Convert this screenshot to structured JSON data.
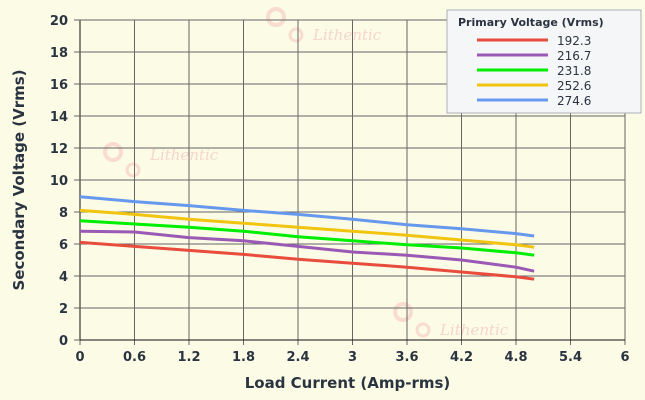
{
  "chart_data": {
    "type": "line",
    "xlabel": "Load Current (Amp-rms)",
    "ylabel": "Secondary Voltage (Vrms)",
    "xlim": [
      0,
      6
    ],
    "ylim": [
      0,
      20
    ],
    "xticks": [
      "0",
      "0.6",
      "1.2",
      "1.8",
      "2.4",
      "3",
      "3.6",
      "4.2",
      "4.8",
      "5.4",
      "6"
    ],
    "yticks": [
      "0",
      "2",
      "4",
      "6",
      "8",
      "10",
      "12",
      "14",
      "16",
      "18",
      "20"
    ],
    "grid": true,
    "legend_title": "Primary Voltage (Vrms)",
    "legend_position": "top-right",
    "x": [
      0,
      0.6,
      1.2,
      1.8,
      2.4,
      3.0,
      3.6,
      4.2,
      4.8,
      5.0
    ],
    "series": [
      {
        "name": "192.3",
        "color": "#e74c3c",
        "values": [
          6.1,
          5.85,
          5.6,
          5.35,
          5.05,
          4.8,
          4.55,
          4.25,
          3.95,
          3.8
        ]
      },
      {
        "name": "216.7",
        "color": "#9b59b6",
        "values": [
          6.8,
          6.75,
          6.4,
          6.2,
          5.85,
          5.5,
          5.3,
          5.0,
          4.55,
          4.3
        ]
      },
      {
        "name": "231.8",
        "color": "#00ee00",
        "values": [
          7.45,
          7.25,
          7.05,
          6.8,
          6.45,
          6.2,
          5.95,
          5.75,
          5.45,
          5.3
        ]
      },
      {
        "name": "252.6",
        "color": "#f1c40f",
        "values": [
          8.1,
          7.85,
          7.55,
          7.3,
          7.05,
          6.8,
          6.55,
          6.25,
          5.95,
          5.8
        ]
      },
      {
        "name": "274.6",
        "color": "#6699ee",
        "values": [
          8.95,
          8.65,
          8.4,
          8.1,
          7.85,
          7.55,
          7.2,
          6.95,
          6.65,
          6.5
        ]
      }
    ]
  },
  "watermark": "Lithentic"
}
